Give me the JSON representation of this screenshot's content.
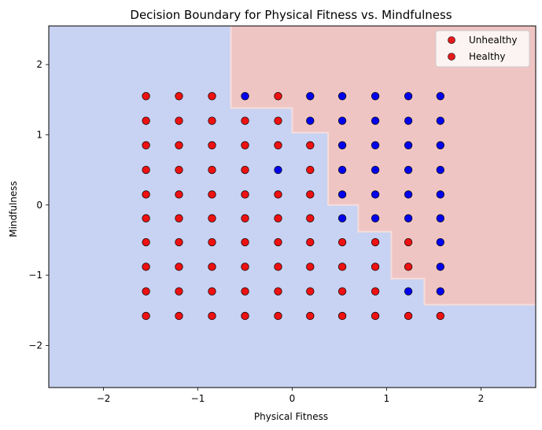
{
  "chart_data": {
    "type": "scatter",
    "title": "Decision Boundary for Physical Fitness vs. Mindfulness",
    "xlabel": "Physical Fitness",
    "ylabel": "Mindfulness",
    "xlim": [
      -2.58,
      2.58
    ],
    "ylim": [
      -2.6,
      2.55
    ],
    "xticks": [
      -2,
      -1,
      0,
      1,
      2
    ],
    "yticks": [
      -2,
      -1,
      0,
      1,
      2
    ],
    "xtick_labels": [
      "−2",
      "−1",
      "0",
      "1",
      "2"
    ],
    "ytick_labels": [
      "−2",
      "−1",
      "0",
      "1",
      "2"
    ],
    "grid": false,
    "legend_position": "top-right",
    "legend": [
      {
        "label": "Unhealthy",
        "color": "#e41a1c"
      },
      {
        "label": "Healthy",
        "color": "#e41a1c"
      }
    ],
    "region_colors": {
      "class_0": "#c8d2f2",
      "class_1": "#efc5c3"
    },
    "point_colors": {
      "class_0": "#0000ee",
      "class_1": "#ee1111"
    },
    "x_values": [
      -1.55,
      -1.2,
      -0.85,
      -0.5,
      -0.15,
      0.19,
      0.53,
      0.88,
      1.23,
      1.57
    ],
    "y_values": [
      1.55,
      1.2,
      0.85,
      0.5,
      0.15,
      -0.19,
      -0.53,
      -0.88,
      -1.23,
      -1.58
    ],
    "point_classes": [
      [
        1,
        1,
        1,
        0,
        1,
        0,
        0,
        0,
        0,
        0
      ],
      [
        1,
        1,
        1,
        1,
        1,
        0,
        0,
        0,
        0,
        0
      ],
      [
        1,
        1,
        1,
        1,
        1,
        1,
        0,
        0,
        0,
        0
      ],
      [
        1,
        1,
        1,
        1,
        0,
        1,
        0,
        0,
        0,
        0
      ],
      [
        1,
        1,
        1,
        1,
        1,
        1,
        0,
        0,
        0,
        0
      ],
      [
        1,
        1,
        1,
        1,
        1,
        1,
        0,
        0,
        0,
        0
      ],
      [
        1,
        1,
        1,
        1,
        1,
        1,
        1,
        1,
        1,
        0
      ],
      [
        1,
        1,
        1,
        1,
        1,
        1,
        1,
        1,
        1,
        0
      ],
      [
        1,
        1,
        1,
        1,
        1,
        1,
        1,
        1,
        0,
        0
      ],
      [
        1,
        1,
        1,
        1,
        1,
        1,
        1,
        1,
        1,
        1
      ]
    ],
    "decision_boundary": [
      [
        -0.65,
        2.55
      ],
      [
        -0.65,
        1.38
      ],
      [
        0.0,
        1.38
      ],
      [
        0.0,
        1.03
      ],
      [
        0.38,
        1.03
      ],
      [
        0.38,
        0.0
      ],
      [
        0.7,
        0.0
      ],
      [
        0.7,
        -0.38
      ],
      [
        1.05,
        -0.38
      ],
      [
        1.05,
        -1.05
      ],
      [
        1.4,
        -1.05
      ],
      [
        1.4,
        -1.42
      ],
      [
        2.58,
        -1.42
      ]
    ]
  }
}
